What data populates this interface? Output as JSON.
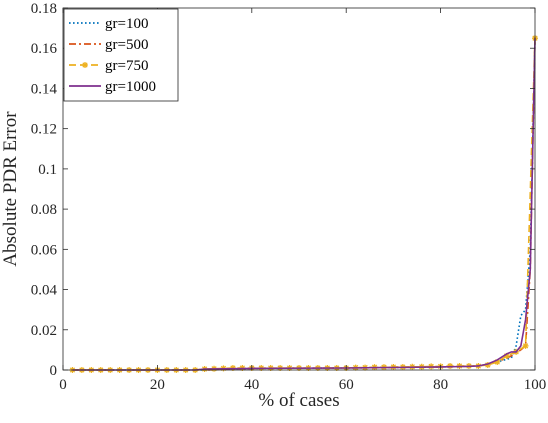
{
  "chart_data": {
    "type": "line",
    "xlabel": "% of cases",
    "ylabel": "Absolute PDR Error",
    "xlim": [
      0,
      100
    ],
    "ylim": [
      0,
      0.18
    ],
    "x_ticks": [
      0,
      20,
      40,
      60,
      80,
      100
    ],
    "x_tick_labels": [
      "0",
      "20",
      "40",
      "60",
      "80",
      "100"
    ],
    "y_ticks": [
      0,
      0.02,
      0.04,
      0.06,
      0.08,
      0.1,
      0.12,
      0.14,
      0.16,
      0.18
    ],
    "y_tick_labels": [
      "0",
      "0.02",
      "0.04",
      "0.06",
      "0.08",
      "0.1",
      "0.12",
      "0.14",
      "0.16",
      "0.18"
    ],
    "grid": false,
    "legend_position": "top-left",
    "series": [
      {
        "name": "gr=100",
        "color": "#0072BD",
        "style": "dotted",
        "marker": "none",
        "x": [
          2,
          30,
          40,
          60,
          80,
          88,
          92,
          95,
          96,
          97,
          98,
          99,
          100
        ],
        "y": [
          0,
          0,
          0.0008,
          0.001,
          0.0015,
          0.002,
          0.004,
          0.006,
          0.012,
          0.027,
          0.03,
          0.06,
          0.165
        ]
      },
      {
        "name": "gr=500",
        "color": "#D95319",
        "style": "dashdot",
        "marker": "none",
        "x": [
          2,
          30,
          40,
          60,
          80,
          88,
          92,
          95,
          97,
          98,
          99,
          100
        ],
        "y": [
          0,
          0,
          0.0008,
          0.001,
          0.0015,
          0.002,
          0.004,
          0.007,
          0.01,
          0.012,
          0.05,
          0.165
        ]
      },
      {
        "name": "gr=750",
        "color": "#EDB120",
        "style": "dashed",
        "marker": "asterisk",
        "x": [
          2,
          4,
          6,
          8,
          10,
          12,
          14,
          16,
          18,
          20,
          22,
          24,
          26,
          28,
          30,
          32,
          34,
          36,
          38,
          40,
          42,
          44,
          46,
          48,
          50,
          52,
          54,
          56,
          58,
          60,
          62,
          64,
          66,
          68,
          70,
          72,
          74,
          76,
          78,
          80,
          82,
          84,
          86,
          88,
          90,
          92,
          94,
          96,
          98,
          100
        ],
        "y": [
          0,
          0,
          0,
          0,
          0,
          0,
          0,
          0,
          0,
          0,
          0,
          0,
          0,
          0,
          0.0005,
          0.0006,
          0.0008,
          0.001,
          0.001,
          0.001,
          0.001,
          0.001,
          0.001,
          0.001,
          0.001,
          0.001,
          0.001,
          0.001,
          0.001,
          0.001,
          0.0012,
          0.0012,
          0.0014,
          0.0014,
          0.0015,
          0.0015,
          0.0016,
          0.0016,
          0.0018,
          0.0018,
          0.002,
          0.002,
          0.002,
          0.002,
          0.0025,
          0.004,
          0.007,
          0.009,
          0.012,
          0.165
        ]
      },
      {
        "name": "gr=1000",
        "color": "#7E2F8E",
        "style": "solid",
        "marker": "none",
        "x": [
          2,
          28,
          30,
          40,
          60,
          80,
          86,
          88,
          90,
          92,
          94,
          95,
          96,
          97,
          98,
          99,
          100
        ],
        "y": [
          0,
          0,
          0.0005,
          0.0008,
          0.001,
          0.0015,
          0.0018,
          0.002,
          0.003,
          0.005,
          0.008,
          0.009,
          0.009,
          0.012,
          0.025,
          0.05,
          0.165
        ]
      }
    ]
  }
}
